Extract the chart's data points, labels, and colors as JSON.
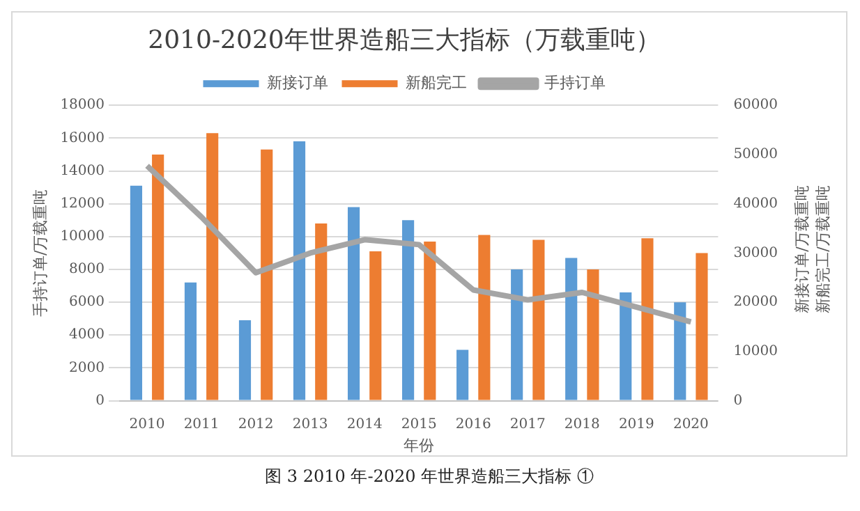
{
  "chart_data": {
    "type": "bar",
    "title": "2010-2020年世界造船三大指标（万载重吨）",
    "xlabel": "年份",
    "ylabel": "手持订单/万载重吨",
    "y2label": "新接订单/万载重吨新船完工/万载重吨",
    "categories": [
      "2010",
      "2011",
      "2012",
      "2013",
      "2014",
      "2015",
      "2016",
      "2017",
      "2018",
      "2019",
      "2020"
    ],
    "series": [
      {
        "name": "新接订单",
        "color": "#5b9bd5",
        "values": [
          13100,
          7200,
          4900,
          15800,
          11800,
          11000,
          3100,
          8000,
          8700,
          6600,
          6000
        ]
      },
      {
        "name": "新船完工",
        "color": "#ed7d31",
        "values": [
          15000,
          16300,
          15300,
          10800,
          9100,
          9700,
          10100,
          9800,
          8000,
          9900,
          9000
        ]
      },
      {
        "name": "手持订单",
        "type": "line",
        "axis": "y2",
        "color": "#a5a5a5",
        "values": [
          47700,
          37300,
          26000,
          30000,
          32700,
          31700,
          22500,
          20500,
          22000,
          19000,
          16000
        ]
      }
    ],
    "ylim": [
      0,
      18000
    ],
    "yticks": [
      0,
      2000,
      4000,
      6000,
      8000,
      10000,
      12000,
      14000,
      16000,
      18000
    ],
    "y2lim": [
      0,
      60000
    ],
    "y2ticks": [
      0,
      10000,
      20000,
      30000,
      40000,
      50000,
      60000
    ],
    "grid": "y",
    "legend": "top",
    "marker": "none",
    "annotations": [
      "图 3 2010 年-2020 年世界造船三大指标 ①"
    ]
  }
}
